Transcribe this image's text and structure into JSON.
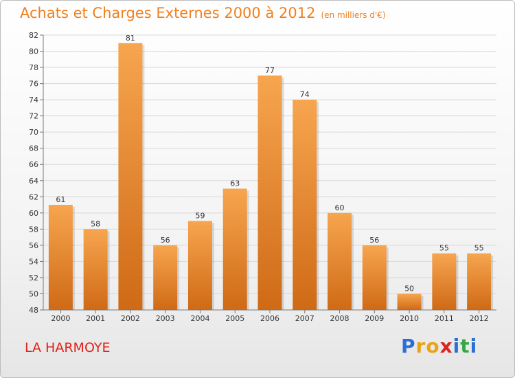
{
  "header": {
    "title": "Achats et Charges Externes 2000 à 2012",
    "unit": "(en milliers d'€)"
  },
  "footer": {
    "place": "LA HARMOYE",
    "logo_letters": [
      "P",
      "r",
      "o",
      "x",
      "i",
      "t",
      "i"
    ],
    "logo_colors": [
      "#2b6fd6",
      "#e8a317",
      "#e8a317",
      "#d9261c",
      "#2b6fd6",
      "#35a745",
      "#2b6fd6"
    ]
  },
  "colors": {
    "title": "#f07f1c",
    "place": "#e0231c",
    "bar_top": "#f7a54f",
    "bar_bottom": "#cf6a16",
    "grid": "#d8d8d8"
  },
  "chart_data": {
    "type": "bar",
    "categories": [
      "2000",
      "2001",
      "2002",
      "2003",
      "2004",
      "2005",
      "2006",
      "2007",
      "2008",
      "2009",
      "2010",
      "2011",
      "2012"
    ],
    "values": [
      61,
      58,
      81,
      56,
      59,
      63,
      77,
      74,
      60,
      56,
      50,
      55,
      55
    ],
    "data_labels": [
      "61",
      "58",
      "81",
      "56",
      "59",
      "63",
      "77",
      "74",
      "60",
      "56",
      "50",
      "55",
      "55"
    ],
    "ylim": [
      48,
      82
    ],
    "yticks": [
      48,
      50,
      52,
      54,
      56,
      58,
      60,
      62,
      64,
      66,
      68,
      70,
      72,
      74,
      76,
      78,
      80,
      82
    ],
    "grid": true
  }
}
